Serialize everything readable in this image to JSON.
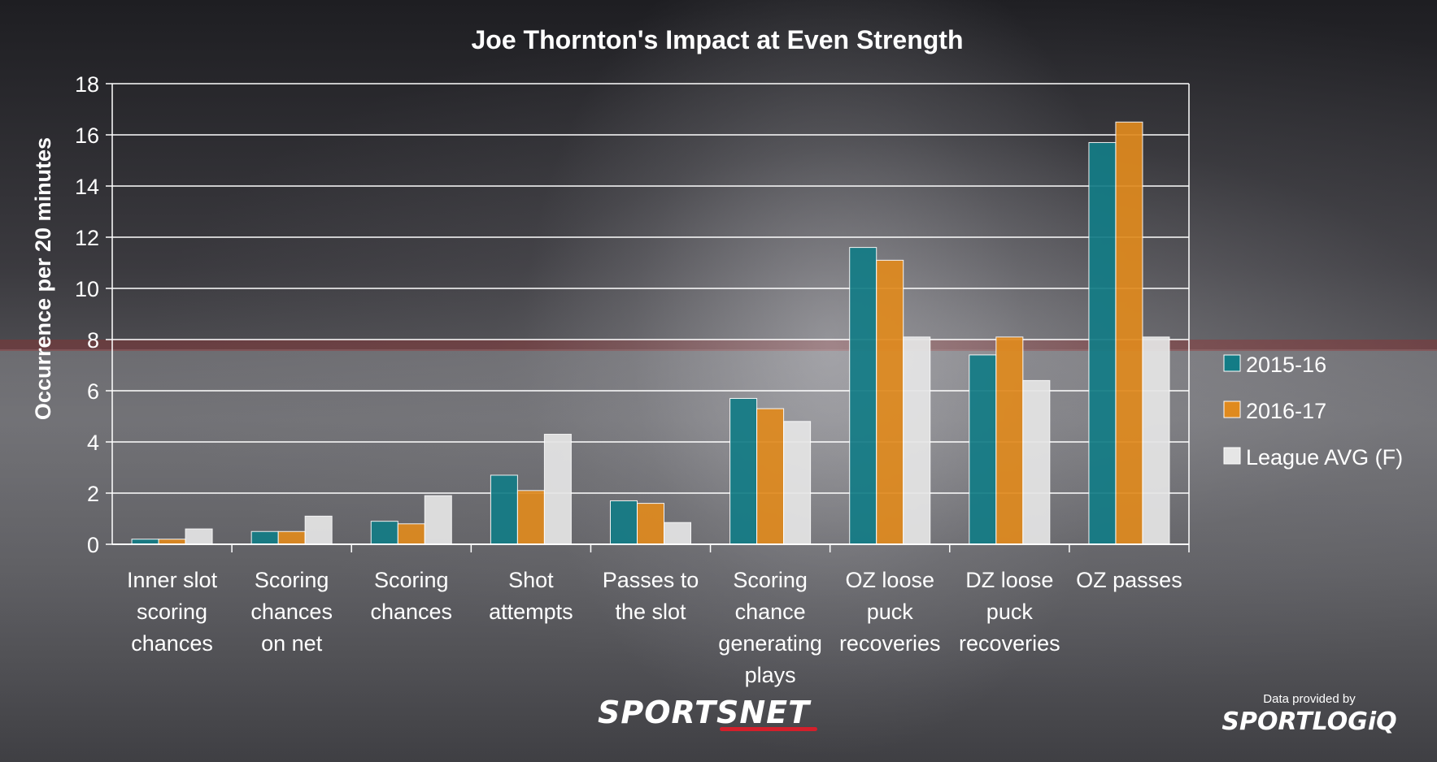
{
  "chart_data": {
    "type": "bar",
    "title": "Joe Thornton's Impact at Even Strength",
    "ylabel": "Occurrence per 20 minutes",
    "xlabel": "",
    "ylim": [
      0,
      18
    ],
    "yticks": [
      "0",
      "2",
      "4",
      "6",
      "8",
      "10",
      "12",
      "14",
      "16",
      "18"
    ],
    "grid": true,
    "legend_position": "right",
    "categories": [
      [
        "Inner slot",
        "scoring",
        "chances"
      ],
      [
        "Scoring",
        "chances",
        "on net"
      ],
      [
        "Scoring",
        "chances"
      ],
      [
        "Shot",
        "attempts"
      ],
      [
        "Passes to",
        "the slot"
      ],
      [
        "Scoring",
        "chance",
        "generating",
        "plays"
      ],
      [
        "OZ loose",
        "puck",
        "recoveries"
      ],
      [
        "DZ loose",
        "puck",
        "recoveries"
      ],
      [
        "OZ passes"
      ]
    ],
    "series": [
      {
        "name": "2015-16",
        "color": "#137c86",
        "values": [
          0.2,
          0.5,
          0.9,
          2.7,
          1.7,
          5.7,
          11.6,
          7.4,
          15.7
        ]
      },
      {
        "name": "2016-17",
        "color": "#e08a1e",
        "values": [
          0.2,
          0.5,
          0.8,
          2.1,
          1.6,
          5.3,
          11.1,
          8.1,
          16.5
        ]
      },
      {
        "name": "League AVG (F)",
        "color": "#e6e6e6",
        "values": [
          0.6,
          1.1,
          1.9,
          4.3,
          0.85,
          4.8,
          8.1,
          6.4,
          8.1
        ]
      }
    ]
  },
  "branding": {
    "sportsnet": "SPORTSNET",
    "credit_line": "Data provided by",
    "credit_brand": "SPORTLOGiQ"
  }
}
